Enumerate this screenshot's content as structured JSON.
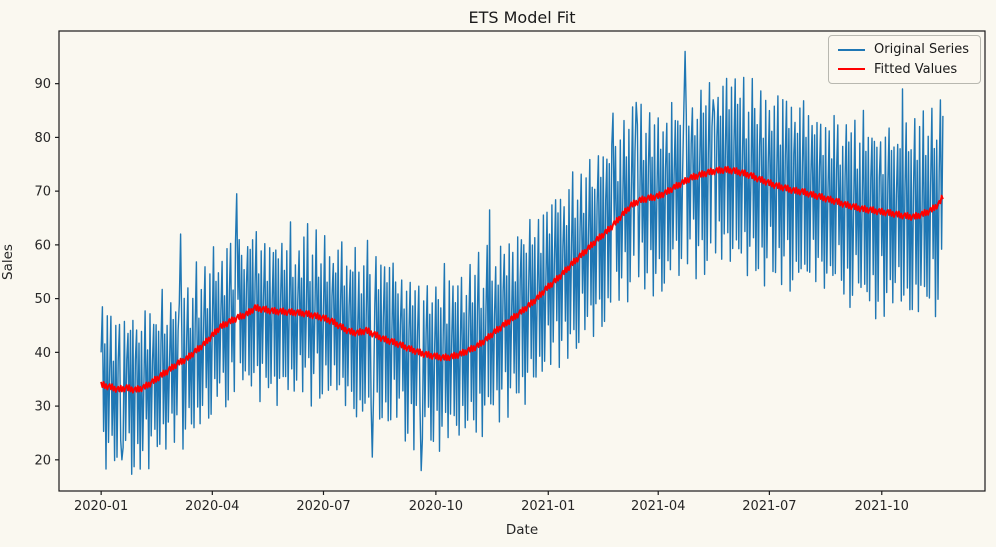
{
  "chart_data": {
    "type": "line",
    "title": "ETS Model Fit",
    "xlabel": "Date",
    "ylabel": "Sales",
    "background_color": "#faf8f0",
    "spine_color": "#1a1a1a",
    "tick_label_color": "#262626",
    "grid": "off",
    "legend_position": "upper right",
    "x_start_date": "2020-01-01",
    "n_days": 690,
    "xlim_days": [
      -34.5,
      723.5
    ],
    "ylim": [
      14.2,
      99.8
    ],
    "y_ticks": [
      20,
      30,
      40,
      50,
      60,
      70,
      80,
      90
    ],
    "x_ticks": [
      {
        "day": 0,
        "label": "2020-01"
      },
      {
        "day": 91,
        "label": "2020-04"
      },
      {
        "day": 182,
        "label": "2020-07"
      },
      {
        "day": 274,
        "label": "2020-10"
      },
      {
        "day": 366,
        "label": "2021-01"
      },
      {
        "day": 456,
        "label": "2021-04"
      },
      {
        "day": 547,
        "label": "2021-07"
      },
      {
        "day": 639,
        "label": "2021-10"
      }
    ],
    "series": [
      {
        "name": "Original Series",
        "color": "#1f77b4",
        "line_width": 1.4,
        "description": "Daily sales: trend + weekly seasonality + noise; min 18 (2020-09), max 96 (2021-04)",
        "weekly_seasonal": [
          3,
          13,
          -9,
          8,
          -14,
          11,
          -12
        ],
        "seasonal_scale_start": 1.0,
        "seasonal_scale_end": 1.25,
        "noise_amplitude": 3.2,
        "overrides": [
          [
            0,
            40
          ],
          [
            17,
            20
          ],
          [
            65,
            62
          ],
          [
            67,
            22
          ],
          [
            111,
            69.5
          ],
          [
            208,
            59.5
          ],
          [
            222,
            20.5
          ],
          [
            249,
            23.5
          ],
          [
            262,
            18
          ],
          [
            318,
            66.5
          ],
          [
            419,
            84.5
          ],
          [
            438,
            86.5
          ],
          [
            460,
            81
          ],
          [
            478,
            96
          ],
          [
            501,
            87
          ],
          [
            656,
            89
          ],
          [
            689,
            84
          ]
        ]
      },
      {
        "name": "Fitted Values",
        "color": "#ff0000",
        "line_width": 1.9,
        "description": "ETS fitted level: starts ~34, dips ~33 (2020-02), peaks ~48 (2020-05), trough ~39 (2020-10), rises to ~74 (2021-05), eases to ~65 (2021-10), ends ~69",
        "weekly_wiggle": [
          0.5,
          -0.4,
          0.6,
          -0.5,
          0.3,
          -0.6,
          0.1
        ],
        "trend_keypoints": [
          [
            0,
            34.0
          ],
          [
            7,
            33.6
          ],
          [
            14,
            33.1
          ],
          [
            21,
            33.4
          ],
          [
            28,
            33.0
          ],
          [
            35,
            33.5
          ],
          [
            42,
            34.5
          ],
          [
            49,
            35.7
          ],
          [
            56,
            36.8
          ],
          [
            63,
            38.0
          ],
          [
            70,
            38.8
          ],
          [
            77,
            40.2
          ],
          [
            84,
            41.5
          ],
          [
            91,
            43.2
          ],
          [
            98,
            44.8
          ],
          [
            105,
            45.7
          ],
          [
            112,
            46.5
          ],
          [
            119,
            47.1
          ],
          [
            126,
            48.3
          ],
          [
            133,
            48.0
          ],
          [
            140,
            47.7
          ],
          [
            147,
            47.6
          ],
          [
            154,
            47.5
          ],
          [
            161,
            47.4
          ],
          [
            168,
            47.2
          ],
          [
            175,
            46.8
          ],
          [
            182,
            46.4
          ],
          [
            189,
            45.8
          ],
          [
            196,
            44.8
          ],
          [
            203,
            43.9
          ],
          [
            210,
            43.6
          ],
          [
            217,
            44.1
          ],
          [
            224,
            43.3
          ],
          [
            231,
            42.5
          ],
          [
            238,
            42.0
          ],
          [
            245,
            41.4
          ],
          [
            252,
            40.7
          ],
          [
            259,
            40.1
          ],
          [
            266,
            39.6
          ],
          [
            273,
            39.3
          ],
          [
            280,
            39.0
          ],
          [
            287,
            39.2
          ],
          [
            294,
            39.7
          ],
          [
            301,
            40.4
          ],
          [
            308,
            41.2
          ],
          [
            315,
            42.4
          ],
          [
            322,
            43.8
          ],
          [
            329,
            45.0
          ],
          [
            336,
            46.2
          ],
          [
            343,
            47.4
          ],
          [
            350,
            48.7
          ],
          [
            357,
            50.1
          ],
          [
            364,
            51.8
          ],
          [
            371,
            53.2
          ],
          [
            378,
            54.7
          ],
          [
            385,
            56.4
          ],
          [
            392,
            57.9
          ],
          [
            399,
            59.4
          ],
          [
            406,
            61.0
          ],
          [
            413,
            62.3
          ],
          [
            420,
            63.9
          ],
          [
            427,
            65.7
          ],
          [
            434,
            67.4
          ],
          [
            441,
            68.3
          ],
          [
            448,
            68.7
          ],
          [
            455,
            69.0
          ],
          [
            462,
            69.7
          ],
          [
            469,
            70.7
          ],
          [
            476,
            71.6
          ],
          [
            483,
            72.5
          ],
          [
            490,
            73.0
          ],
          [
            497,
            73.5
          ],
          [
            504,
            73.8
          ],
          [
            511,
            74.0
          ],
          [
            518,
            73.8
          ],
          [
            525,
            73.4
          ],
          [
            532,
            72.9
          ],
          [
            539,
            72.2
          ],
          [
            546,
            71.6
          ],
          [
            553,
            71.0
          ],
          [
            560,
            70.6
          ],
          [
            567,
            70.1
          ],
          [
            574,
            69.9
          ],
          [
            581,
            69.4
          ],
          [
            588,
            69.0
          ],
          [
            595,
            68.5
          ],
          [
            602,
            68.1
          ],
          [
            609,
            67.5
          ],
          [
            616,
            67.1
          ],
          [
            623,
            66.7
          ],
          [
            630,
            66.5
          ],
          [
            637,
            66.2
          ],
          [
            644,
            66.0
          ],
          [
            651,
            65.7
          ],
          [
            658,
            65.4
          ],
          [
            665,
            65.2
          ],
          [
            672,
            65.7
          ],
          [
            679,
            66.4
          ],
          [
            686,
            67.7
          ],
          [
            689,
            69.0
          ]
        ]
      }
    ]
  }
}
